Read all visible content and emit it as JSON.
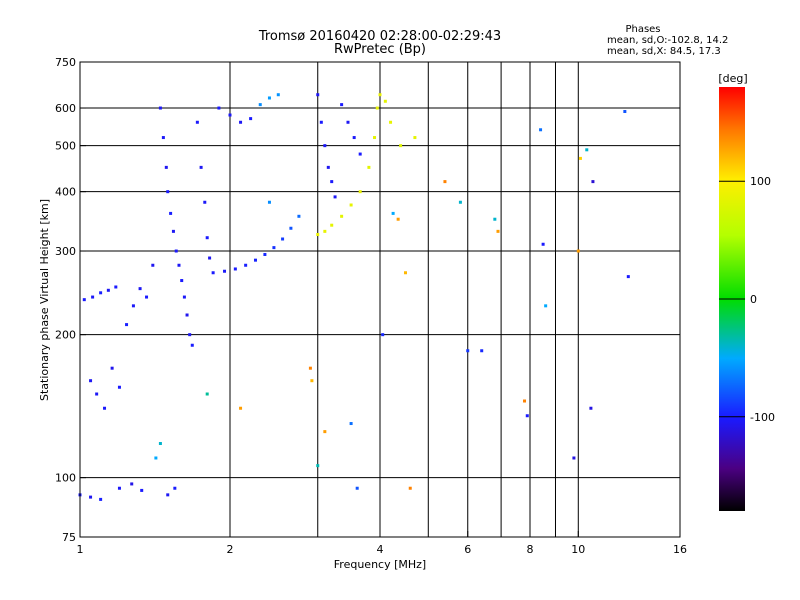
{
  "chart_data": {
    "type": "scatter",
    "title": "Tromsø 20160420 02:28:00-02:29:43",
    "subtitle": "RwPretec (Bp)",
    "xlabel": "Frequency [MHz]",
    "ylabel": "Stationary phase Virtual Height [km]",
    "x_scale": "log",
    "y_scale": "log",
    "xlim": [
      1,
      16
    ],
    "ylim": [
      75,
      750
    ],
    "x_ticks": [
      1,
      2,
      4,
      6,
      8,
      10,
      16
    ],
    "y_ticks": [
      75,
      100,
      200,
      300,
      400,
      500,
      600,
      750
    ],
    "grid_x": [
      2,
      3,
      4,
      5,
      6,
      7,
      8,
      9,
      10
    ],
    "grid_y": [
      100,
      200,
      300,
      400,
      500,
      600
    ],
    "grid": true,
    "stats": {
      "title": "Phases",
      "line1": "mean, sd,O:-102.8, 14.2",
      "line2": "mean, sd,X:  84.5, 17.3"
    },
    "colorbar": {
      "label": "[deg]",
      "range": [
        -180,
        180
      ],
      "ticks": [
        -100,
        0,
        100
      ]
    },
    "series": [
      {
        "points": [
          {
            "x": 1.0,
            "y": 92,
            "p": -100
          },
          {
            "x": 1.05,
            "y": 91,
            "p": -105
          },
          {
            "x": 1.1,
            "y": 90,
            "p": -98
          },
          {
            "x": 1.2,
            "y": 95,
            "p": -102
          },
          {
            "x": 1.27,
            "y": 97,
            "p": -108
          },
          {
            "x": 1.33,
            "y": 94,
            "p": -100
          },
          {
            "x": 1.5,
            "y": 92,
            "p": -104
          },
          {
            "x": 1.55,
            "y": 95,
            "p": -99
          },
          {
            "x": 1.05,
            "y": 160,
            "p": -104
          },
          {
            "x": 1.08,
            "y": 150,
            "p": -103
          },
          {
            "x": 1.12,
            "y": 140,
            "p": -101
          },
          {
            "x": 1.16,
            "y": 170,
            "p": -106
          },
          {
            "x": 1.2,
            "y": 155,
            "p": -100
          },
          {
            "x": 1.24,
            "y": 210,
            "p": -98
          },
          {
            "x": 1.28,
            "y": 230,
            "p": -102
          },
          {
            "x": 1.32,
            "y": 250,
            "p": -104
          },
          {
            "x": 1.36,
            "y": 240,
            "p": -100
          },
          {
            "x": 1.4,
            "y": 280,
            "p": -105
          },
          {
            "x": 1.02,
            "y": 237,
            "p": -100
          },
          {
            "x": 1.06,
            "y": 240,
            "p": -102
          },
          {
            "x": 1.1,
            "y": 245,
            "p": -98
          },
          {
            "x": 1.14,
            "y": 248,
            "p": -104
          },
          {
            "x": 1.18,
            "y": 252,
            "p": -100
          },
          {
            "x": 1.45,
            "y": 600,
            "p": -103
          },
          {
            "x": 1.47,
            "y": 520,
            "p": -102
          },
          {
            "x": 1.49,
            "y": 450,
            "p": -105
          },
          {
            "x": 1.5,
            "y": 400,
            "p": -100
          },
          {
            "x": 1.52,
            "y": 360,
            "p": -98
          },
          {
            "x": 1.54,
            "y": 330,
            "p": -104
          },
          {
            "x": 1.56,
            "y": 300,
            "p": -101
          },
          {
            "x": 1.58,
            "y": 280,
            "p": -103
          },
          {
            "x": 1.6,
            "y": 260,
            "p": -100
          },
          {
            "x": 1.62,
            "y": 240,
            "p": -102
          },
          {
            "x": 1.64,
            "y": 220,
            "p": -106
          },
          {
            "x": 1.66,
            "y": 200,
            "p": -104
          },
          {
            "x": 1.68,
            "y": 190,
            "p": -99
          },
          {
            "x": 1.72,
            "y": 560,
            "p": -101
          },
          {
            "x": 1.75,
            "y": 450,
            "p": -104
          },
          {
            "x": 1.78,
            "y": 380,
            "p": -102
          },
          {
            "x": 1.8,
            "y": 320,
            "p": -100
          },
          {
            "x": 1.82,
            "y": 290,
            "p": -105
          },
          {
            "x": 1.85,
            "y": 270,
            "p": -100
          },
          {
            "x": 1.95,
            "y": 272,
            "p": -102
          },
          {
            "x": 2.05,
            "y": 275,
            "p": -100
          },
          {
            "x": 2.15,
            "y": 280,
            "p": -98
          },
          {
            "x": 2.25,
            "y": 287,
            "p": -97
          },
          {
            "x": 2.35,
            "y": 295,
            "p": -95
          },
          {
            "x": 2.45,
            "y": 305,
            "p": -92
          },
          {
            "x": 2.55,
            "y": 318,
            "p": -88
          },
          {
            "x": 2.65,
            "y": 335,
            "p": -80
          },
          {
            "x": 2.75,
            "y": 355,
            "p": -72
          },
          {
            "x": 1.9,
            "y": 600,
            "p": -100
          },
          {
            "x": 2.0,
            "y": 580,
            "p": -102
          },
          {
            "x": 2.1,
            "y": 560,
            "p": -104
          },
          {
            "x": 2.2,
            "y": 570,
            "p": -100
          },
          {
            "x": 2.3,
            "y": 610,
            "p": -60
          },
          {
            "x": 2.4,
            "y": 630,
            "p": -55
          },
          {
            "x": 2.5,
            "y": 640,
            "p": -58
          },
          {
            "x": 3.0,
            "y": 640,
            "p": -104
          },
          {
            "x": 3.05,
            "y": 560,
            "p": -100
          },
          {
            "x": 3.1,
            "y": 500,
            "p": -102
          },
          {
            "x": 3.15,
            "y": 450,
            "p": -105
          },
          {
            "x": 3.2,
            "y": 420,
            "p": -101
          },
          {
            "x": 3.25,
            "y": 390,
            "p": -103
          },
          {
            "x": 3.35,
            "y": 610,
            "p": -100
          },
          {
            "x": 3.45,
            "y": 560,
            "p": -104
          },
          {
            "x": 3.55,
            "y": 520,
            "p": -102
          },
          {
            "x": 3.65,
            "y": 480,
            "p": -100
          },
          {
            "x": 3.0,
            "y": 325,
            "p": 88
          },
          {
            "x": 3.1,
            "y": 330,
            "p": 86
          },
          {
            "x": 3.2,
            "y": 340,
            "p": 84
          },
          {
            "x": 3.35,
            "y": 355,
            "p": 83
          },
          {
            "x": 3.5,
            "y": 375,
            "p": 85
          },
          {
            "x": 3.65,
            "y": 400,
            "p": 87
          },
          {
            "x": 3.8,
            "y": 450,
            "p": 82
          },
          {
            "x": 3.9,
            "y": 520,
            "p": 84
          },
          {
            "x": 3.95,
            "y": 600,
            "p": 86
          },
          {
            "x": 4.0,
            "y": 640,
            "p": 88
          },
          {
            "x": 4.1,
            "y": 620,
            "p": 83
          },
          {
            "x": 4.2,
            "y": 560,
            "p": 85
          },
          {
            "x": 4.4,
            "y": 500,
            "p": 80
          },
          {
            "x": 4.7,
            "y": 520,
            "p": 84
          },
          {
            "x": 1.42,
            "y": 110,
            "p": -50
          },
          {
            "x": 1.45,
            "y": 118,
            "p": -40
          },
          {
            "x": 1.8,
            "y": 150,
            "p": -30
          },
          {
            "x": 2.1,
            "y": 140,
            "p": 130
          },
          {
            "x": 2.4,
            "y": 380,
            "p": -60
          },
          {
            "x": 2.9,
            "y": 170,
            "p": 140
          },
          {
            "x": 2.92,
            "y": 160,
            "p": 120
          },
          {
            "x": 3.0,
            "y": 106,
            "p": -35
          },
          {
            "x": 3.1,
            "y": 125,
            "p": 130
          },
          {
            "x": 3.6,
            "y": 95,
            "p": -80
          },
          {
            "x": 3.5,
            "y": 130,
            "p": -70
          },
          {
            "x": 4.05,
            "y": 200,
            "p": -95
          },
          {
            "x": 4.5,
            "y": 270,
            "p": 120
          },
          {
            "x": 4.6,
            "y": 95,
            "p": 140
          },
          {
            "x": 4.35,
            "y": 350,
            "p": 130
          },
          {
            "x": 4.25,
            "y": 360,
            "p": -50
          },
          {
            "x": 5.4,
            "y": 420,
            "p": 140
          },
          {
            "x": 5.8,
            "y": 380,
            "p": -40
          },
          {
            "x": 6.0,
            "y": 185,
            "p": -90
          },
          {
            "x": 6.4,
            "y": 185,
            "p": -95
          },
          {
            "x": 6.8,
            "y": 350,
            "p": -40
          },
          {
            "x": 6.9,
            "y": 330,
            "p": 130
          },
          {
            "x": 7.8,
            "y": 145,
            "p": 140
          },
          {
            "x": 7.9,
            "y": 135,
            "p": -100
          },
          {
            "x": 8.4,
            "y": 540,
            "p": -70
          },
          {
            "x": 8.5,
            "y": 310,
            "p": -100
          },
          {
            "x": 8.6,
            "y": 230,
            "p": -50
          },
          {
            "x": 9.8,
            "y": 110,
            "p": -110
          },
          {
            "x": 10.0,
            "y": 300,
            "p": 130
          },
          {
            "x": 10.1,
            "y": 470,
            "p": 110
          },
          {
            "x": 10.4,
            "y": 490,
            "p": -40
          },
          {
            "x": 10.6,
            "y": 140,
            "p": -110
          },
          {
            "x": 10.7,
            "y": 420,
            "p": -115
          },
          {
            "x": 12.4,
            "y": 590,
            "p": -80
          },
          {
            "x": 12.6,
            "y": 265,
            "p": -100
          }
        ]
      }
    ]
  }
}
